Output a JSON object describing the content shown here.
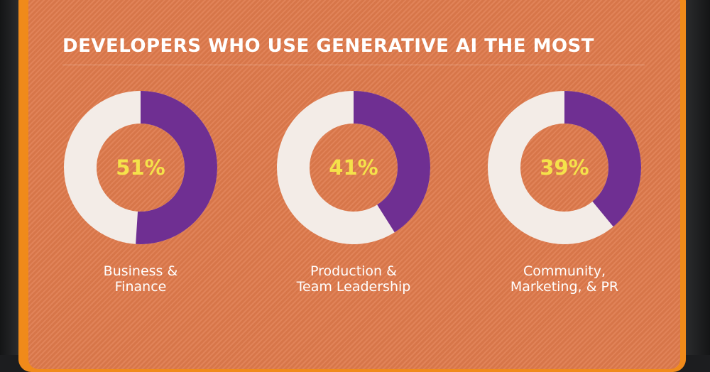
{
  "chart_data": {
    "type": "pie",
    "title": "DEVELOPERS WHO USE GENERATIVE AI THE MOST",
    "value_unit": "%",
    "categories": [
      "Business & Finance",
      "Production & Team Leadership",
      "Community, Marketing, & PR"
    ],
    "values": [
      51,
      41,
      39
    ],
    "value_labels": [
      "51%",
      "41%",
      "39%"
    ],
    "category_label_lines": [
      [
        "Business &",
        "Finance"
      ],
      [
        "Production &",
        "Team Leadership"
      ],
      [
        "Community,",
        "Marketing, & PR"
      ]
    ],
    "style": "donut",
    "start_angle": "top",
    "direction": "clockwise"
  },
  "colors": {
    "card_background": "#df7a4c",
    "frame_accent": "#f08a1a",
    "highlight_arc": "#6f2f92",
    "remainder_arc": "#f3ece7",
    "value_text": "#f5e24a",
    "label_text": "#ffffff"
  }
}
